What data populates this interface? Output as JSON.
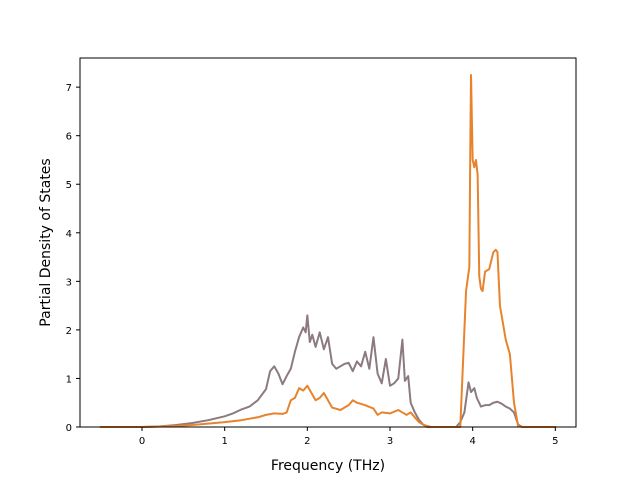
{
  "chart_data": {
    "type": "line",
    "xlabel": "Frequency (THz)",
    "ylabel": "Partial Density of States",
    "xlim": [
      -0.75,
      5.25
    ],
    "ylim": [
      0,
      7.6
    ],
    "x_ticks": [
      "0",
      "1",
      "2",
      "3",
      "4",
      "5"
    ],
    "y_ticks": [
      "0",
      "1",
      "2",
      "3",
      "4",
      "5",
      "6",
      "7"
    ],
    "grid": false,
    "legend": "none",
    "series": [
      {
        "color": "#8c7a80",
        "x": [
          -0.5,
          0.0,
          0.2,
          0.4,
          0.6,
          0.8,
          1.0,
          1.1,
          1.2,
          1.3,
          1.4,
          1.5,
          1.55,
          1.6,
          1.65,
          1.7,
          1.75,
          1.8,
          1.85,
          1.9,
          1.95,
          1.98,
          2.0,
          2.03,
          2.06,
          2.1,
          2.15,
          2.2,
          2.25,
          2.3,
          2.35,
          2.4,
          2.45,
          2.5,
          2.55,
          2.6,
          2.65,
          2.7,
          2.75,
          2.8,
          2.85,
          2.9,
          2.95,
          3.0,
          3.05,
          3.1,
          3.15,
          3.18,
          3.22,
          3.25,
          3.3,
          3.35,
          3.4,
          3.45,
          3.5,
          3.6,
          3.7,
          3.8,
          3.85,
          3.9,
          3.95,
          3.98,
          4.02,
          4.05,
          4.1,
          4.15,
          4.2,
          4.25,
          4.3,
          4.35,
          4.4,
          4.45,
          4.5,
          4.55,
          4.6,
          4.8,
          5.0
        ],
        "y": [
          0,
          0,
          0.01,
          0.04,
          0.08,
          0.14,
          0.22,
          0.28,
          0.36,
          0.42,
          0.55,
          0.78,
          1.15,
          1.25,
          1.1,
          0.88,
          1.05,
          1.2,
          1.55,
          1.85,
          2.05,
          1.95,
          2.3,
          1.75,
          1.9,
          1.65,
          1.95,
          1.6,
          1.85,
          1.3,
          1.2,
          1.25,
          1.3,
          1.32,
          1.15,
          1.35,
          1.25,
          1.55,
          1.2,
          1.85,
          1.1,
          0.9,
          1.4,
          0.85,
          0.9,
          1.0,
          1.8,
          0.95,
          1.05,
          0.5,
          0.3,
          0.15,
          0.05,
          0,
          0,
          0,
          0,
          0,
          0.1,
          0.3,
          0.92,
          0.72,
          0.8,
          0.6,
          0.42,
          0.45,
          0.45,
          0.5,
          0.52,
          0.48,
          0.42,
          0.38,
          0.3,
          0.05,
          0,
          0,
          0
        ]
      },
      {
        "color": "#e8832d",
        "x": [
          -0.5,
          0.0,
          0.2,
          0.4,
          0.6,
          0.8,
          1.0,
          1.2,
          1.4,
          1.5,
          1.6,
          1.7,
          1.75,
          1.8,
          1.85,
          1.9,
          1.95,
          2.0,
          2.05,
          2.1,
          2.15,
          2.2,
          2.25,
          2.3,
          2.4,
          2.5,
          2.55,
          2.6,
          2.7,
          2.8,
          2.85,
          2.9,
          3.0,
          3.1,
          3.15,
          3.2,
          3.25,
          3.3,
          3.35,
          3.4,
          3.45,
          3.5,
          3.6,
          3.7,
          3.8,
          3.85,
          3.88,
          3.92,
          3.96,
          3.97,
          3.98,
          4.0,
          4.02,
          4.04,
          4.06,
          4.08,
          4.1,
          4.12,
          4.15,
          4.2,
          4.25,
          4.28,
          4.3,
          4.33,
          4.36,
          4.4,
          4.45,
          4.5,
          4.55,
          4.6,
          4.8,
          5.0
        ],
        "y": [
          0,
          0,
          0.01,
          0.02,
          0.04,
          0.07,
          0.1,
          0.14,
          0.2,
          0.25,
          0.28,
          0.27,
          0.3,
          0.55,
          0.6,
          0.8,
          0.75,
          0.85,
          0.7,
          0.55,
          0.6,
          0.7,
          0.55,
          0.4,
          0.35,
          0.45,
          0.55,
          0.5,
          0.45,
          0.38,
          0.25,
          0.3,
          0.28,
          0.35,
          0.3,
          0.25,
          0.3,
          0.2,
          0.1,
          0.05,
          0.02,
          0,
          0,
          0,
          0,
          0,
          1.2,
          2.8,
          3.3,
          5.5,
          7.25,
          5.5,
          5.35,
          5.5,
          5.2,
          3.1,
          2.85,
          2.8,
          3.2,
          3.25,
          3.6,
          3.65,
          3.6,
          2.5,
          2.2,
          1.8,
          1.5,
          0.5,
          0.02,
          0,
          0,
          0
        ]
      }
    ]
  }
}
